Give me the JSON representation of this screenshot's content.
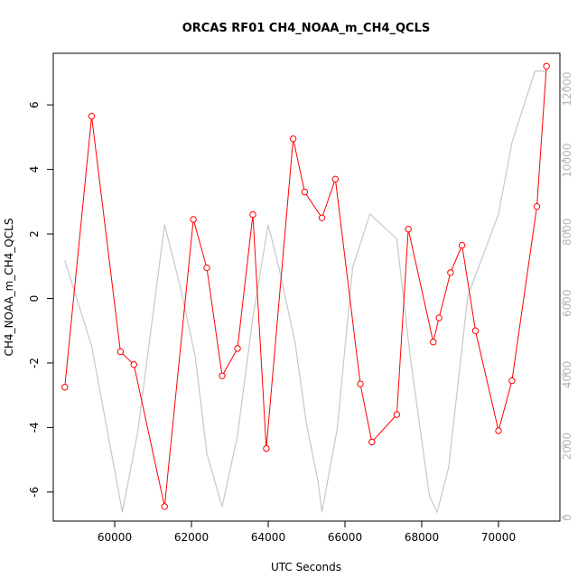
{
  "chart_data": {
    "type": "line",
    "title": "ORCAS RF01 CH4_NOAA_m_CH4_QCLS",
    "xlabel": "UTC Seconds",
    "ylabel": "CH4_NOAA_m_CH4_QCLS",
    "xlim": [
      58400,
      71600
    ],
    "ylim": [
      -6.9,
      7.6
    ],
    "xticks": [
      60000,
      62000,
      64000,
      66000,
      68000,
      70000
    ],
    "yticks": [
      -6,
      -4,
      -2,
      0,
      2,
      4,
      6
    ],
    "y2lim": [
      -100,
      13000
    ],
    "y2ticks": [
      0,
      2000,
      4000,
      6000,
      8000,
      10000,
      12000
    ],
    "grid": false,
    "colors": {
      "primary": "#ff0000",
      "secondary": "#c8c8c8",
      "axis": "#000000",
      "axis2": "#b4b4b4"
    },
    "series": [
      {
        "axis": "left",
        "style": "line-points",
        "x": [
          58700,
          59400,
          60150,
          60500,
          61300,
          62050,
          62400,
          62800,
          63200,
          63600,
          63950,
          64650,
          64950,
          65400,
          65750,
          66400,
          66700,
          67350,
          67650,
          68300,
          68450,
          68750,
          69050,
          69400,
          70000,
          70350,
          71000,
          71250
        ],
        "values": [
          -2.75,
          5.65,
          -1.65,
          -2.05,
          -6.45,
          2.45,
          0.95,
          -2.4,
          -1.55,
          2.6,
          -4.65,
          4.95,
          3.3,
          2.5,
          3.7,
          -2.65,
          -4.45,
          -3.6,
          2.15,
          -1.35,
          -0.6,
          0.8,
          1.65,
          -1.0,
          -4.1,
          -2.55,
          2.85,
          7.2
        ]
      },
      {
        "axis": "right",
        "style": "line",
        "x": [
          58700,
          59400,
          60200,
          60600,
          61300,
          61700,
          62100,
          62400,
          62800,
          63200,
          63600,
          64000,
          64300,
          64700,
          65000,
          65300,
          65400,
          65800,
          66200,
          66650,
          67350,
          67700,
          68200,
          68400,
          68700,
          69200,
          70000,
          70350,
          70950,
          71250
        ],
        "values": [
          7200,
          4800,
          150,
          2400,
          8200,
          6500,
          4500,
          1800,
          300,
          2300,
          5600,
          8200,
          6900,
          4900,
          2600,
          1000,
          150,
          2500,
          7000,
          8500,
          7800,
          4500,
          600,
          150,
          1400,
          6200,
          8500,
          10500,
          12500,
          12500
        ]
      }
    ]
  }
}
